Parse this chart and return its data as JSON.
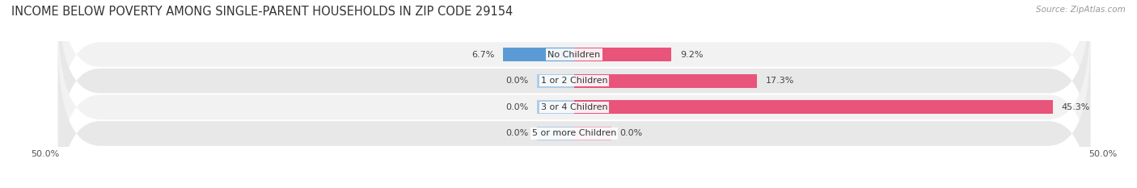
{
  "title": "INCOME BELOW POVERTY AMONG SINGLE-PARENT HOUSEHOLDS IN ZIP CODE 29154",
  "source": "Source: ZipAtlas.com",
  "categories": [
    "No Children",
    "1 or 2 Children",
    "3 or 4 Children",
    "5 or more Children"
  ],
  "father_values": [
    6.7,
    0.0,
    0.0,
    0.0
  ],
  "mother_values": [
    9.2,
    17.3,
    45.3,
    0.0
  ],
  "father_color_main": "#5b9bd5",
  "father_color_stub": "#aecde8",
  "mother_color_main": "#e8547a",
  "mother_color_stub": "#f4aec4",
  "row_bg_light": "#f2f2f2",
  "row_bg_dark": "#e8e8e8",
  "x_min": -50.0,
  "x_max": 50.0,
  "title_fontsize": 10.5,
  "source_fontsize": 7.5,
  "label_fontsize": 8,
  "tick_fontsize": 8,
  "legend_fontsize": 8,
  "bar_height": 0.52,
  "stub_size": 3.5
}
